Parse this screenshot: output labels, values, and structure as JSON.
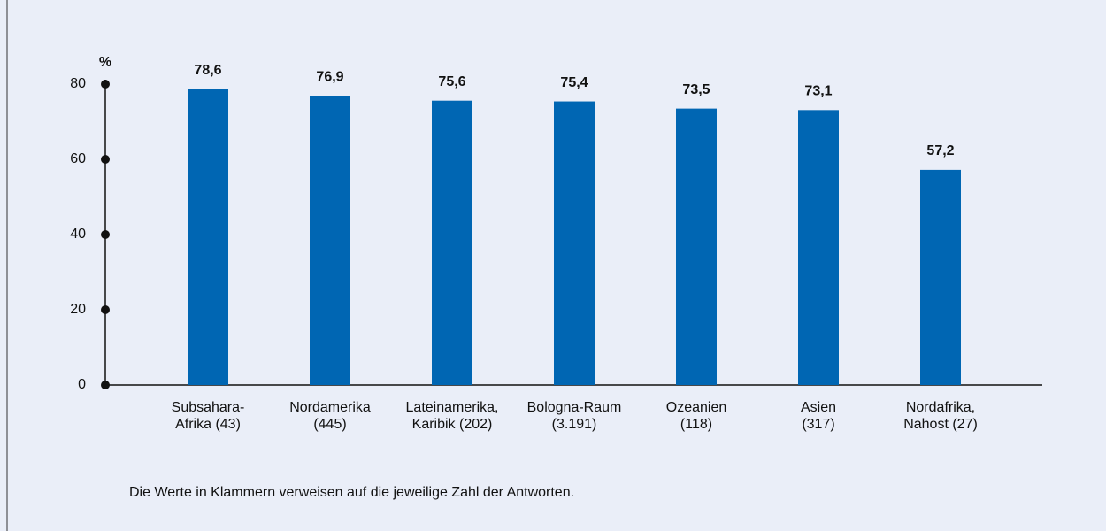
{
  "chart_data": {
    "type": "bar",
    "y_unit": "%",
    "categories": [
      [
        "Subsahara-",
        "Afrika (43)"
      ],
      [
        "Nordamerika",
        "(445)"
      ],
      [
        "Lateinamerika,",
        "Karibik (202)"
      ],
      [
        "Bologna-Raum",
        "(3.191)"
      ],
      [
        "Ozeanien",
        "(118)"
      ],
      [
        "Asien",
        "(317)"
      ],
      [
        "Nordafrika,",
        "Nahost (27)"
      ]
    ],
    "values": [
      78.6,
      76.9,
      75.6,
      75.4,
      73.5,
      73.1,
      57.2
    ],
    "value_labels": [
      "78,6",
      "76,9",
      "75,6",
      "75,4",
      "73,5",
      "73,1",
      "57,2"
    ],
    "color": "#0066b3",
    "ylim": [
      0,
      80
    ],
    "yticks": [
      0,
      20,
      40,
      60,
      80
    ],
    "note": "Die Werte in Klammern verweisen auf die jeweilige Zahl der Antworten."
  }
}
